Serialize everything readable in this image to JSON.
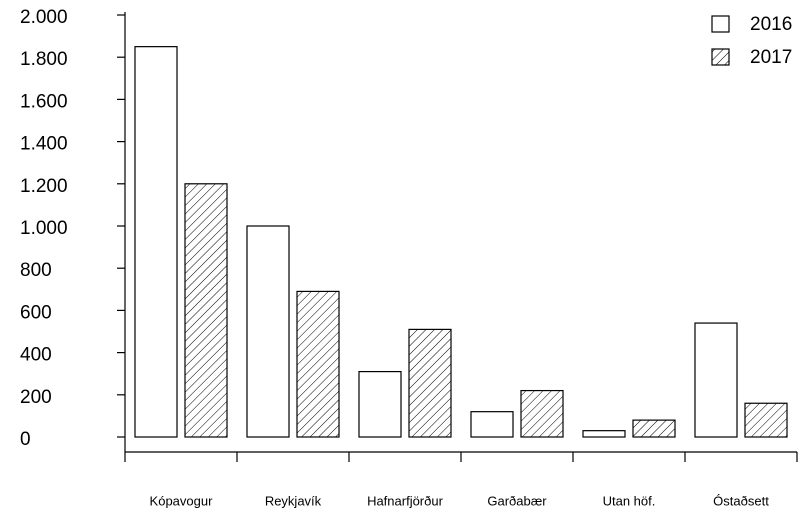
{
  "chart_data": {
    "type": "bar",
    "categories": [
      "Kópavogur",
      "Reykjavík",
      "Hafnarfjörður",
      "Garðabær",
      "Utan höf.",
      "Óstaðsett"
    ],
    "series": [
      {
        "name": "2016",
        "color": "#ffffff",
        "values": [
          1850,
          1000,
          310,
          120,
          30,
          540
        ]
      },
      {
        "name": "2017",
        "color": "hatch",
        "values": [
          1200,
          690,
          510,
          220,
          80,
          160
        ]
      }
    ],
    "ylim": [
      0,
      2000
    ],
    "yticks": [
      0,
      200,
      400,
      600,
      800,
      {
        "value": 1000,
        "label": "1.000"
      },
      {
        "value": 1200,
        "label": "1.200"
      },
      {
        "value": 1400,
        "label": "1.400"
      },
      {
        "value": 1600,
        "label": "1.600"
      },
      {
        "value": 1800,
        "label": "1.800"
      },
      {
        "value": 2000,
        "label": "2.000"
      }
    ],
    "legend": "top-right"
  }
}
